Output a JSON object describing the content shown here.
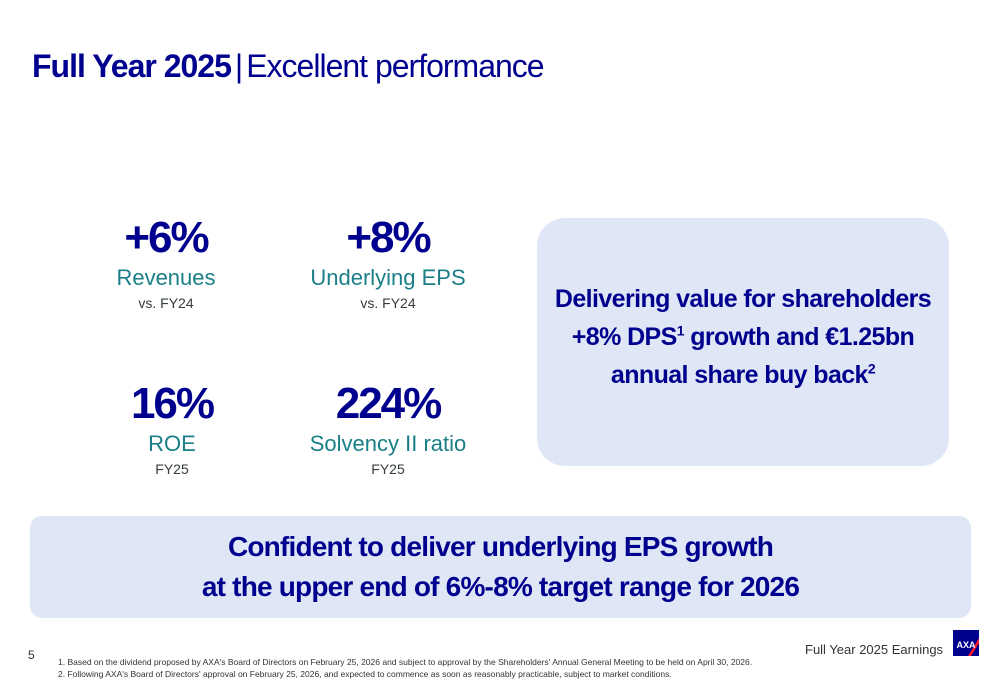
{
  "header": {
    "title_bold": "Full Year 2025",
    "separator": "|",
    "title_rest": "Excellent performance"
  },
  "kpis": [
    {
      "value": "+6%",
      "label": "Revenues",
      "sub": "vs. FY24"
    },
    {
      "value": "+8%",
      "label": "Underlying EPS",
      "sub": "vs. FY24"
    },
    {
      "value": "16%",
      "label": "ROE",
      "sub": "FY25"
    },
    {
      "value": "224%",
      "label": "Solvency II ratio",
      "sub": "FY25"
    }
  ],
  "highlight": {
    "line1": "Delivering value for shareholders",
    "line2_a": "+8% DPS",
    "line2_sup": "1",
    "line2_b": " growth and €1.25bn",
    "line3_a": "annual share buy back",
    "line3_sup": "2"
  },
  "outlook": {
    "line1": "Confident to deliver underlying EPS growth",
    "line2": "at the upper end of 6%-8% target range for 2026"
  },
  "footer": {
    "page_number": "5",
    "footnote1": "1. Based on the dividend proposed by AXA's Board of Directors on February 25, 2026 and subject to approval by the Shareholders' Annual General Meeting to be held on April 30, 2026.",
    "footnote2": "2. Following AXA's Board of Directors' approval on February 25, 2026, and expected to commence as soon as reasonably practicable, subject to market conditions.",
    "label": "Full Year 2025 Earnings",
    "logo_text": "AXA"
  },
  "colors": {
    "brand_blue": "#00008f",
    "teal": "#1a7f86",
    "panel": "#dfe6f5",
    "logo_red": "#ff1721"
  }
}
